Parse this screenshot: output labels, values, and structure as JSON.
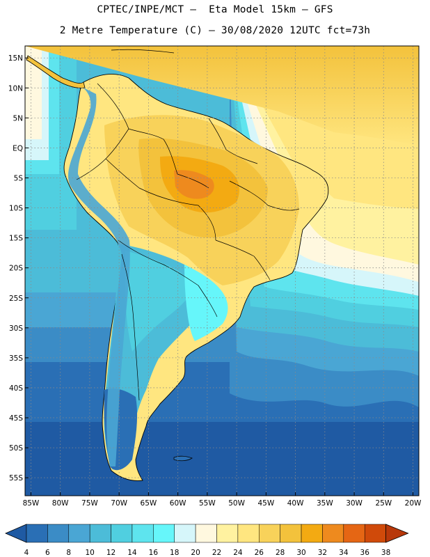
{
  "header": {
    "line1": "CPTEC/INPE/MCT –  Eta Model 15km – GFS",
    "line2": "2 Metre Temperature (C) – 30/08/2020 12UTC fct=73h"
  },
  "axes": {
    "lat_labels": [
      "15N",
      "10N",
      "5N",
      "EQ",
      "5S",
      "10S",
      "15S",
      "20S",
      "25S",
      "30S",
      "35S",
      "40S",
      "45S",
      "50S",
      "55S"
    ],
    "lon_labels": [
      "85W",
      "80W",
      "75W",
      "70W",
      "65W",
      "60W",
      "55W",
      "50W",
      "45W",
      "40W",
      "35W",
      "30W",
      "25W",
      "20W"
    ]
  },
  "colorbar": {
    "ticks": [
      "4",
      "6",
      "8",
      "10",
      "12",
      "14",
      "16",
      "18",
      "20",
      "22",
      "24",
      "26",
      "28",
      "30",
      "32",
      "34",
      "36",
      "38"
    ],
    "colors": [
      "#1f5aa3",
      "#2a6fb5",
      "#3b8cc6",
      "#4aa6d4",
      "#4cbcd8",
      "#50cfe0",
      "#5ee4ee",
      "#66f6fa",
      "#d6f6fa",
      "#fff8df",
      "#fff2a0",
      "#ffe680",
      "#f8d25a",
      "#f3c23c",
      "#f3aa12",
      "#ee8a1e",
      "#e56614",
      "#d04a0a",
      "#b8380a"
    ]
  },
  "map_data": {
    "lon_range": [
      -86,
      -19
    ],
    "lat_range": [
      17,
      -58
    ]
  }
}
